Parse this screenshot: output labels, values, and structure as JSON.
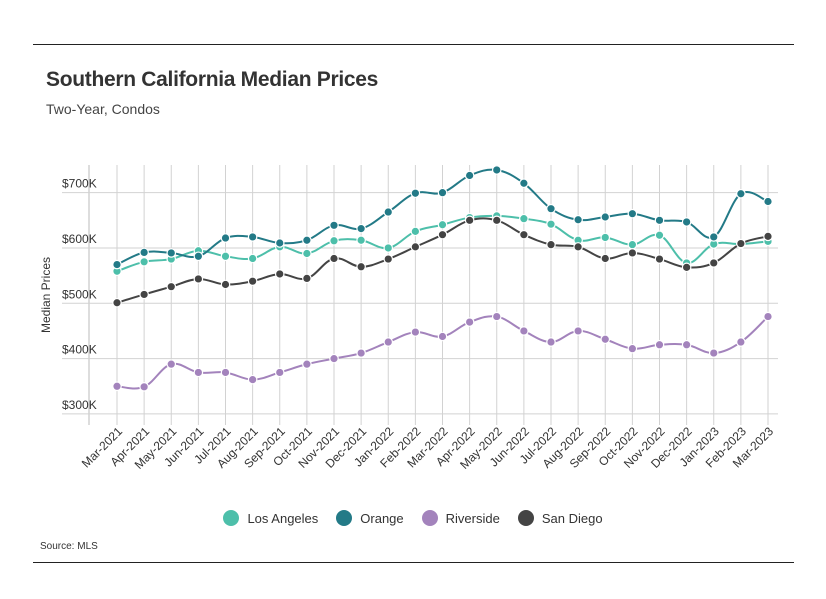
{
  "header": {
    "title": "Southern California Median Prices",
    "subtitle": "Two-Year, Condos"
  },
  "footer": {
    "source": "Source: MLS"
  },
  "chart_data": {
    "type": "line",
    "title": "Southern California Median Prices",
    "subtitle": "Two-Year, Condos",
    "xlabel": "",
    "ylabel": "Median Prices",
    "ylim": [
      280000,
      750000
    ],
    "yticks": [
      300000,
      400000,
      500000,
      600000,
      700000
    ],
    "ytick_labels": [
      "$300K",
      "$400K",
      "$500K",
      "$600K",
      "$700K"
    ],
    "grid": true,
    "legend_position": "bottom",
    "categories": [
      "Mar-2021",
      "Apr-2021",
      "May-2021",
      "Jun-2021",
      "Jul-2021",
      "Aug-2021",
      "Sep-2021",
      "Oct-2021",
      "Nov-2021",
      "Dec-2021",
      "Jan-2022",
      "Feb-2022",
      "Mar-2022",
      "Apr-2022",
      "May-2022",
      "Jun-2022",
      "Jul-2022",
      "Aug-2022",
      "Sep-2022",
      "Oct-2022",
      "Nov-2022",
      "Dec-2022",
      "Jan-2023",
      "Feb-2023",
      "Mar-2023"
    ],
    "series": [
      {
        "name": "Los Angeles",
        "color": "#4dbfaa",
        "values": [
          558000,
          575000,
          580000,
          595000,
          585000,
          581000,
          602000,
          590000,
          613000,
          614000,
          600000,
          630000,
          642000,
          655000,
          658000,
          653000,
          643000,
          614000,
          619000,
          606000,
          623000,
          573000,
          607000,
          607000,
          612000
        ]
      },
      {
        "name": "Orange",
        "color": "#237a87",
        "values": [
          570000,
          592000,
          591000,
          585000,
          618000,
          620000,
          609000,
          614000,
          641000,
          635000,
          665000,
          699000,
          700000,
          731000,
          741000,
          717000,
          671000,
          651000,
          656000,
          662000,
          650000,
          647000,
          620000,
          698000,
          684000
        ]
      },
      {
        "name": "Riverside",
        "color": "#a383bc",
        "values": [
          350000,
          349000,
          390000,
          375000,
          375000,
          362000,
          375000,
          390000,
          400000,
          410000,
          430000,
          448000,
          440000,
          466000,
          476000,
          450000,
          430000,
          450000,
          435000,
          418000,
          425000,
          425000,
          410000,
          430000,
          476000
        ]
      },
      {
        "name": "San Diego",
        "color": "#444444",
        "values": [
          501000,
          516000,
          530000,
          544000,
          534000,
          540000,
          553000,
          545000,
          581000,
          566000,
          580000,
          602000,
          624000,
          650000,
          650000,
          624000,
          606000,
          602000,
          581000,
          591000,
          580000,
          565000,
          573000,
          608000,
          621000
        ]
      }
    ]
  }
}
